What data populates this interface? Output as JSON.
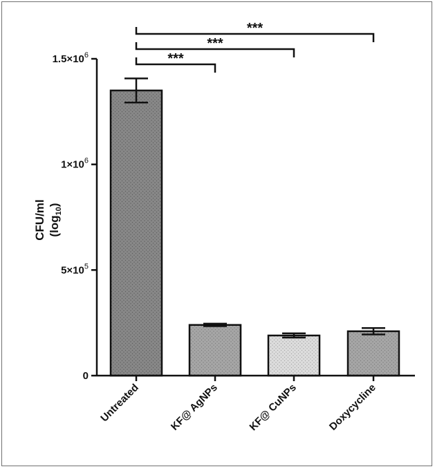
{
  "chart_data": {
    "type": "bar",
    "categories": [
      "Untreated",
      "KF@ AgNPs",
      "KF@ CuNPs",
      "Doxycycline"
    ],
    "values": [
      1350000,
      240000,
      190000,
      210000
    ],
    "errors": [
      57000,
      6000,
      10000,
      15000
    ],
    "ylim": [
      0,
      1500000
    ],
    "yticks": [
      0,
      500000,
      1000000,
      1500000
    ],
    "ytick_labels": [
      {
        "base": "0",
        "exp": ""
      },
      {
        "base": "5×10",
        "exp": "5"
      },
      {
        "base": "1×10",
        "exp": "6"
      },
      {
        "base": "1.5×10",
        "exp": "6"
      }
    ],
    "ylabel": {
      "line1": "CFU/ml",
      "line2_prefix": "(log",
      "line2_sub": "10",
      "line2_suffix": ")"
    },
    "bar_colors": [
      "#888888",
      "#a6a6a6",
      "#d9d9d9",
      "#a6a6a6"
    ],
    "significance": [
      {
        "from": 0,
        "to": 3,
        "label": "***"
      },
      {
        "from": 0,
        "to": 2,
        "label": "***"
      },
      {
        "from": 0,
        "to": 1,
        "label": "***"
      }
    ]
  }
}
